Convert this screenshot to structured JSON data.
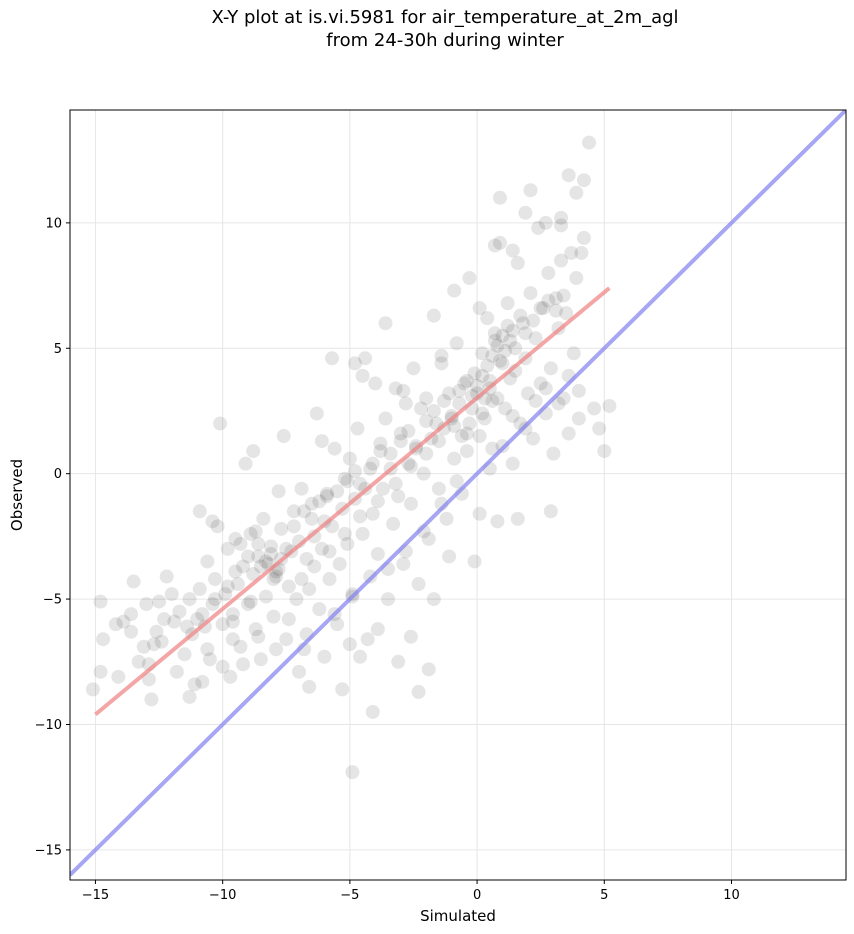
{
  "chart_data": {
    "type": "scatter",
    "title_line1": "X-Y plot at is.vi.5981 for air_temperature_at_2m_agl",
    "title_line2": "from 24-30h during winter",
    "xlabel": "Simulated",
    "ylabel": "Observed",
    "xlim": [
      -16,
      14.5
    ],
    "ylim": [
      -16.2,
      14.5
    ],
    "xticks": [
      -15,
      -10,
      -5,
      0,
      5,
      10
    ],
    "yticks": [
      -15,
      -10,
      -5,
      0,
      5,
      10
    ],
    "xtick_labels": [
      "−15",
      "−10",
      "−5",
      "0",
      "5",
      "10"
    ],
    "ytick_labels": [
      "−15",
      "−10",
      "−5",
      "0",
      "5",
      "10"
    ],
    "grid": true,
    "point_color": "#000000",
    "point_alpha": 0.1,
    "regression_line": {
      "x": [
        -15,
        5.2
      ],
      "y": [
        -9.6,
        7.4
      ],
      "color": "#f08080"
    },
    "identity_line": {
      "x": [
        -16,
        14.5
      ],
      "y": [
        -16,
        14.5
      ],
      "color": "#8080f0"
    },
    "points": [
      [
        -15.1,
        -8.6
      ],
      [
        -14.8,
        -5.1
      ],
      [
        -14.7,
        -6.6
      ],
      [
        -14.8,
        -7.9
      ],
      [
        -14.2,
        -6.0
      ],
      [
        -13.9,
        -5.9
      ],
      [
        -13.6,
        -6.3
      ],
      [
        -13.5,
        -4.3
      ],
      [
        -13.3,
        -7.5
      ],
      [
        -13.1,
        -6.9
      ],
      [
        -12.9,
        -8.2
      ],
      [
        -12.8,
        -9.0
      ],
      [
        -12.7,
        -6.8
      ],
      [
        -12.6,
        -6.3
      ],
      [
        -12.5,
        -5.1
      ],
      [
        -12.3,
        -5.8
      ],
      [
        -12.2,
        -4.1
      ],
      [
        -12.0,
        -4.8
      ],
      [
        -11.9,
        -5.9
      ],
      [
        -11.7,
        -5.5
      ],
      [
        -11.5,
        -7.2
      ],
      [
        -11.3,
        -5.0
      ],
      [
        -11.2,
        -6.4
      ],
      [
        -11.0,
        -5.8
      ],
      [
        -10.9,
        -4.6
      ],
      [
        -10.8,
        -8.3
      ],
      [
        -10.7,
        -6.1
      ],
      [
        -10.6,
        -3.5
      ],
      [
        -10.5,
        -7.4
      ],
      [
        -10.4,
        -5.2
      ],
      [
        -10.3,
        -4.2
      ],
      [
        -10.2,
        -2.1
      ],
      [
        -10.1,
        2.0
      ],
      [
        -10.0,
        -6.0
      ],
      [
        -9.9,
        -4.8
      ],
      [
        -9.8,
        -3.0
      ],
      [
        -9.7,
        -8.1
      ],
      [
        -9.6,
        -5.6
      ],
      [
        -9.5,
        -2.6
      ],
      [
        -9.4,
        -4.4
      ],
      [
        -9.3,
        -6.9
      ],
      [
        -9.2,
        -3.7
      ],
      [
        -9.1,
        0.4
      ],
      [
        -9.0,
        -5.2
      ],
      [
        -8.9,
        -2.4
      ],
      [
        -8.8,
        -4.0
      ],
      [
        -8.7,
        -6.2
      ],
      [
        -8.6,
        -3.3
      ],
      [
        -8.5,
        -7.4
      ],
      [
        -8.4,
        -1.8
      ],
      [
        -8.3,
        -4.9
      ],
      [
        -8.2,
        -3.6
      ],
      [
        -8.1,
        -2.9
      ],
      [
        -8.0,
        -5.7
      ],
      [
        -7.9,
        -4.1
      ],
      [
        -7.8,
        -3.8
      ],
      [
        -7.7,
        -2.2
      ],
      [
        -7.6,
        1.5
      ],
      [
        -7.5,
        -6.6
      ],
      [
        -7.4,
        -4.5
      ],
      [
        -7.3,
        -3.1
      ],
      [
        -7.2,
        -1.5
      ],
      [
        -7.1,
        -5.0
      ],
      [
        -7.0,
        -2.7
      ],
      [
        -6.9,
        -0.6
      ],
      [
        -6.8,
        -7.0
      ],
      [
        -6.7,
        -3.4
      ],
      [
        -6.6,
        -4.6
      ],
      [
        -6.5,
        -1.2
      ],
      [
        -6.4,
        -2.5
      ],
      [
        -6.3,
        2.4
      ],
      [
        -6.2,
        -5.4
      ],
      [
        -6.1,
        -3.0
      ],
      [
        -6.0,
        -1.9
      ],
      [
        -5.9,
        -0.8
      ],
      [
        -5.8,
        -4.2
      ],
      [
        -5.7,
        -2.1
      ],
      [
        -5.6,
        1.0
      ],
      [
        -5.5,
        -6.0
      ],
      [
        -5.4,
        -3.6
      ],
      [
        -5.3,
        -1.4
      ],
      [
        -5.2,
        -0.2
      ],
      [
        -5.1,
        -2.8
      ],
      [
        -5.0,
        0.6
      ],
      [
        -4.9,
        -4.8
      ],
      [
        -4.8,
        -1.0
      ],
      [
        -4.7,
        1.8
      ],
      [
        -4.6,
        -0.4
      ],
      [
        -4.5,
        -2.4
      ],
      [
        -4.4,
        4.6
      ],
      [
        -4.3,
        -6.6
      ],
      [
        -4.2,
        0.2
      ],
      [
        -4.1,
        -1.6
      ],
      [
        -4.0,
        3.6
      ],
      [
        -3.9,
        -3.2
      ],
      [
        -3.8,
        1.2
      ],
      [
        -3.7,
        -0.6
      ],
      [
        -3.6,
        2.2
      ],
      [
        -3.5,
        -5.0
      ],
      [
        -3.4,
        0.8
      ],
      [
        -3.3,
        -2.0
      ],
      [
        -3.2,
        3.4
      ],
      [
        -3.1,
        -0.9
      ],
      [
        -3.0,
        1.6
      ],
      [
        -2.9,
        -3.6
      ],
      [
        -2.8,
        2.8
      ],
      [
        -2.7,
        0.4
      ],
      [
        -2.6,
        -1.2
      ],
      [
        -2.5,
        4.2
      ],
      [
        -2.4,
        1.0
      ],
      [
        -2.3,
        -4.4
      ],
      [
        -2.2,
        2.6
      ],
      [
        -2.1,
        0.0
      ],
      [
        -2.0,
        3.0
      ],
      [
        -1.9,
        -2.6
      ],
      [
        -1.8,
        1.4
      ],
      [
        -1.7,
        6.3
      ],
      [
        -1.6,
        2.0
      ],
      [
        -1.5,
        -0.6
      ],
      [
        -1.4,
        4.4
      ],
      [
        -1.3,
        1.8
      ],
      [
        -1.2,
        -1.8
      ],
      [
        -1.1,
        3.2
      ],
      [
        -1.0,
        2.2
      ],
      [
        -0.9,
        0.6
      ],
      [
        -0.8,
        5.2
      ],
      [
        -0.7,
        2.8
      ],
      [
        -0.6,
        -0.8
      ],
      [
        -0.5,
        3.6
      ],
      [
        -0.4,
        1.6
      ],
      [
        -0.3,
        7.8
      ],
      [
        -0.2,
        2.6
      ],
      [
        -0.1,
        4.0
      ],
      [
        0.0,
        3.2
      ],
      [
        0.1,
        -1.6
      ],
      [
        0.2,
        4.8
      ],
      [
        0.3,
        2.2
      ],
      [
        0.4,
        6.2
      ],
      [
        0.5,
        3.4
      ],
      [
        0.6,
        1.0
      ],
      [
        0.7,
        5.6
      ],
      [
        0.8,
        3.0
      ],
      [
        0.9,
        9.2
      ],
      [
        1.0,
        4.4
      ],
      [
        1.1,
        2.6
      ],
      [
        1.2,
        6.8
      ],
      [
        1.3,
        3.8
      ],
      [
        1.4,
        0.4
      ],
      [
        1.5,
        5.0
      ],
      [
        1.6,
        8.4
      ],
      [
        1.7,
        2.0
      ],
      [
        1.8,
        6.0
      ],
      [
        1.9,
        4.6
      ],
      [
        2.0,
        3.2
      ],
      [
        2.1,
        7.2
      ],
      [
        2.2,
        1.4
      ],
      [
        2.3,
        5.4
      ],
      [
        2.4,
        9.8
      ],
      [
        2.5,
        3.6
      ],
      [
        2.6,
        6.6
      ],
      [
        2.7,
        2.4
      ],
      [
        2.8,
        8.0
      ],
      [
        2.9,
        4.2
      ],
      [
        3.0,
        0.8
      ],
      [
        3.1,
        7.0
      ],
      [
        3.2,
        5.8
      ],
      [
        3.3,
        10.2
      ],
      [
        3.4,
        3.0
      ],
      [
        3.5,
        6.4
      ],
      [
        3.6,
        1.6
      ],
      [
        3.7,
        8.8
      ],
      [
        3.8,
        4.8
      ],
      [
        3.9,
        11.2
      ],
      [
        4.0,
        2.2
      ],
      [
        4.2,
        9.4
      ],
      [
        4.4,
        13.2
      ],
      [
        4.6,
        2.6
      ],
      [
        4.8,
        1.8
      ],
      [
        5.0,
        0.9
      ],
      [
        5.2,
        2.7
      ],
      [
        0.9,
        11.0
      ],
      [
        2.1,
        11.3
      ],
      [
        3.6,
        11.9
      ],
      [
        4.2,
        11.7
      ],
      [
        -4.1,
        -9.5
      ],
      [
        -4.9,
        -11.9
      ],
      [
        -2.3,
        -8.7
      ],
      [
        -6.6,
        -8.5
      ],
      [
        -5.3,
        -8.6
      ],
      [
        -3.1,
        -7.5
      ],
      [
        -4.6,
        -7.3
      ],
      [
        -1.9,
        -7.8
      ],
      [
        -0.1,
        -3.5
      ],
      [
        0.8,
        -1.9
      ],
      [
        1.6,
        -1.8
      ],
      [
        2.9,
        -1.5
      ],
      [
        -1.1,
        -3.3
      ],
      [
        -1.7,
        -5.0
      ],
      [
        -2.6,
        -6.5
      ],
      [
        -8.8,
        0.9
      ],
      [
        -10.4,
        -1.9
      ],
      [
        -11.3,
        -8.9
      ],
      [
        -12.9,
        -7.6
      ],
      [
        -13.6,
        -5.6
      ],
      [
        -9.6,
        -5.9
      ],
      [
        -10.9,
        -1.5
      ],
      [
        -7.8,
        -0.7
      ],
      [
        -6.1,
        1.3
      ],
      [
        -3.6,
        6.0
      ],
      [
        -5.7,
        4.6
      ],
      [
        -4.8,
        4.4
      ],
      [
        -4.5,
        3.9
      ],
      [
        -2.9,
        3.3
      ],
      [
        -1.4,
        4.7
      ],
      [
        -0.9,
        7.3
      ],
      [
        0.1,
        6.6
      ],
      [
        1.9,
        10.4
      ],
      [
        2.7,
        10.0
      ],
      [
        3.3,
        9.9
      ],
      [
        4.1,
        8.8
      ],
      [
        3.9,
        7.8
      ],
      [
        3.3,
        8.5
      ],
      [
        1.4,
        8.9
      ],
      [
        0.7,
        9.1
      ],
      [
        -8.3,
        -3.5
      ],
      [
        -8.1,
        -3.2
      ],
      [
        -7.9,
        -3.9
      ],
      [
        -8.5,
        -3.7
      ],
      [
        -7.7,
        -3.4
      ],
      [
        -8.0,
        -4.2
      ],
      [
        -7.5,
        -3.0
      ],
      [
        -8.6,
        -2.8
      ],
      [
        -7.2,
        -2.1
      ],
      [
        -6.8,
        -1.5
      ],
      [
        -6.5,
        -1.8
      ],
      [
        -6.2,
        -1.1
      ],
      [
        -5.9,
        -0.9
      ],
      [
        -5.5,
        -0.7
      ],
      [
        -5.1,
        -0.3
      ],
      [
        -4.8,
        0.1
      ],
      [
        -4.4,
        -0.6
      ],
      [
        -4.1,
        0.4
      ],
      [
        -3.8,
        0.9
      ],
      [
        -3.4,
        0.2
      ],
      [
        -3.0,
        1.3
      ],
      [
        -2.7,
        1.7
      ],
      [
        -2.4,
        1.1
      ],
      [
        -2.0,
        2.1
      ],
      [
        -1.7,
        2.5
      ],
      [
        -1.3,
        2.9
      ],
      [
        -1.0,
        2.3
      ],
      [
        -0.7,
        3.3
      ],
      [
        -0.4,
        3.7
      ],
      [
        -0.2,
        3.1
      ],
      [
        0.0,
        3.5
      ],
      [
        0.2,
        3.9
      ],
      [
        0.4,
        4.3
      ],
      [
        0.6,
        4.7
      ],
      [
        0.8,
        5.1
      ],
      [
        1.0,
        5.5
      ],
      [
        1.2,
        5.9
      ],
      [
        1.1,
        4.9
      ],
      [
        0.9,
        4.5
      ],
      [
        1.3,
        5.3
      ],
      [
        1.5,
        4.1
      ],
      [
        1.4,
        5.7
      ],
      [
        0.7,
        5.3
      ],
      [
        0.5,
        3.7
      ],
      [
        0.3,
        3.0
      ],
      [
        1.7,
        6.3
      ],
      [
        1.9,
        5.6
      ],
      [
        2.2,
        6.1
      ],
      [
        2.5,
        6.6
      ],
      [
        2.8,
        6.9
      ],
      [
        3.1,
        6.5
      ],
      [
        3.4,
        7.1
      ],
      [
        0.6,
        2.9
      ],
      [
        0.2,
        2.4
      ],
      [
        -0.3,
        2.0
      ],
      [
        -0.6,
        1.5
      ],
      [
        -9.3,
        -2.8
      ],
      [
        -9.0,
        -3.3
      ],
      [
        -8.7,
        -2.3
      ],
      [
        -9.5,
        -3.9
      ],
      [
        -9.8,
        -4.5
      ],
      [
        -10.3,
        -5.0
      ],
      [
        -10.8,
        -5.6
      ],
      [
        -11.4,
        -6.1
      ],
      [
        -6.9,
        -4.2
      ],
      [
        -6.4,
        -3.7
      ],
      [
        -5.8,
        -3.1
      ],
      [
        -5.2,
        -2.4
      ],
      [
        -4.6,
        -1.7
      ],
      [
        -3.9,
        -1.1
      ],
      [
        -3.2,
        -0.4
      ],
      [
        -2.6,
        0.3
      ],
      [
        -2.0,
        0.8
      ],
      [
        -1.5,
        1.3
      ],
      [
        -0.9,
        1.9
      ],
      [
        -0.4,
        0.9
      ],
      [
        0.1,
        1.5
      ],
      [
        0.5,
        0.2
      ],
      [
        1.0,
        1.1
      ],
      [
        1.4,
        2.3
      ],
      [
        1.9,
        1.8
      ],
      [
        2.3,
        2.9
      ],
      [
        2.7,
        3.4
      ],
      [
        3.2,
        2.8
      ],
      [
        3.6,
        3.9
      ],
      [
        4.0,
        3.3
      ],
      [
        -7.4,
        -5.8
      ],
      [
        -6.7,
        -6.4
      ],
      [
        -5.6,
        -5.6
      ],
      [
        -4.9,
        -4.9
      ],
      [
        -4.2,
        -4.1
      ],
      [
        -3.5,
        -3.8
      ],
      [
        -2.8,
        -3.1
      ],
      [
        -2.1,
        -2.3
      ],
      [
        -1.4,
        -1.2
      ],
      [
        -0.8,
        -0.3
      ],
      [
        -8.9,
        -5.1
      ],
      [
        -9.6,
        -6.6
      ],
      [
        -10.6,
        -7.0
      ],
      [
        -11.8,
        -7.9
      ],
      [
        -12.4,
        -6.7
      ],
      [
        -13.0,
        -5.2
      ],
      [
        -14.1,
        -8.1
      ],
      [
        -6.0,
        -7.3
      ],
      [
        -7.0,
        -7.9
      ],
      [
        -7.9,
        -7.0
      ],
      [
        -8.6,
        -6.5
      ],
      [
        -9.2,
        -7.6
      ],
      [
        -10.0,
        -7.7
      ],
      [
        -11.1,
        -8.4
      ],
      [
        -5.0,
        -6.8
      ],
      [
        -3.9,
        -6.2
      ]
    ]
  }
}
